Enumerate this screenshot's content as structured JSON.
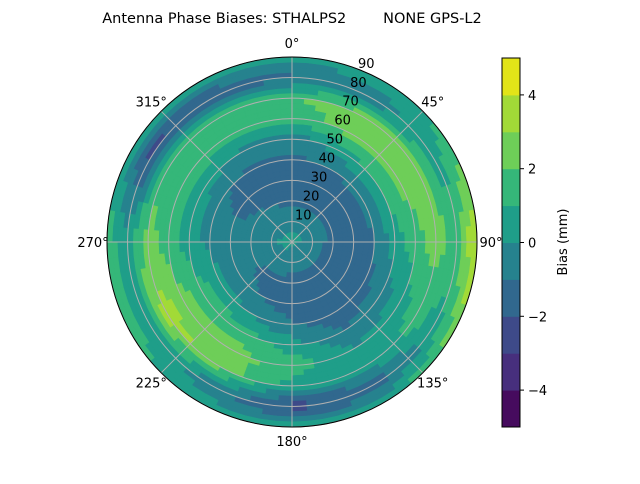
{
  "chart_data": {
    "type": "heatmap",
    "subtype": "polar-contourf",
    "title": "Antenna Phase Biases: STHALPS2        NONE GPS-L2",
    "theta_direction": "clockwise",
    "theta_zero": "north",
    "theta_tick_labels": [
      "0°",
      "45°",
      "90°",
      "135°",
      "180°",
      "225°",
      "270°",
      "315°"
    ],
    "r_tick_labels": [
      "10",
      "20",
      "30",
      "40",
      "50",
      "60",
      "70",
      "80",
      "90"
    ],
    "r_range": [
      0,
      90
    ],
    "grid": true,
    "azimuths_deg": [
      0,
      30,
      60,
      90,
      120,
      150,
      180,
      210,
      240,
      270,
      300,
      330
    ],
    "zeniths_deg": [
      0,
      10,
      20,
      30,
      40,
      50,
      60,
      70,
      80,
      90
    ],
    "values_mm": [
      [
        0.3,
        -0.5,
        -1.2,
        -1.5,
        -1.2,
        -0.5,
        1.2,
        2.0,
        -1.2,
        0.5
      ],
      [
        0.3,
        -0.5,
        -1.2,
        -1.5,
        -1.0,
        0.5,
        2.5,
        2.5,
        -0.5,
        0.5
      ],
      [
        0.3,
        -0.5,
        -1.3,
        -1.5,
        -0.8,
        1.2,
        2.5,
        2.5,
        0.5,
        1.5
      ],
      [
        0.3,
        -0.5,
        -1.3,
        -1.6,
        -1.0,
        0.5,
        1.5,
        2.5,
        1.5,
        4.5
      ],
      [
        0.3,
        -0.6,
        -1.4,
        -1.6,
        -1.3,
        -0.5,
        0.5,
        1.5,
        0.5,
        2.5
      ],
      [
        0.3,
        -0.6,
        -1.4,
        -1.7,
        -1.5,
        -1.0,
        0.0,
        0.5,
        -1.5,
        0.5
      ],
      [
        0.3,
        -0.6,
        -1.3,
        -1.5,
        -1.0,
        0.5,
        1.5,
        0.5,
        -2.5,
        0.5
      ],
      [
        0.3,
        -0.5,
        -1.2,
        -1.0,
        0.0,
        1.5,
        2.5,
        2.5,
        -0.5,
        0.5
      ],
      [
        0.3,
        -0.4,
        -1.0,
        -0.8,
        0.5,
        1.5,
        2.5,
        3.5,
        0.5,
        1.5
      ],
      [
        0.5,
        -0.2,
        -0.6,
        -0.5,
        -0.3,
        0.5,
        1.5,
        2.5,
        0.5,
        1.5
      ],
      [
        0.3,
        -0.3,
        -0.8,
        -1.2,
        -0.8,
        0.5,
        1.5,
        1.5,
        -2.5,
        0.5
      ],
      [
        0.3,
        -0.4,
        -1.0,
        -1.5,
        -1.2,
        -0.2,
        1.5,
        1.5,
        -2.0,
        0.5
      ]
    ],
    "levels": [
      -5,
      -4,
      -3,
      -2,
      -1,
      0,
      1,
      2,
      3,
      4,
      5
    ],
    "colormap": "viridis",
    "level_colors": [
      "#460b5e",
      "#472f7d",
      "#3e4a89",
      "#31688e",
      "#26828e",
      "#1f9e89",
      "#35b779",
      "#6ece58",
      "#a2da37",
      "#e2e418"
    ],
    "colorbar": {
      "label": "Bias (mm)",
      "tick_values": [
        -4,
        -2,
        0,
        2,
        4
      ],
      "tick_labels": [
        "−4",
        "−2",
        "0",
        "2",
        "4"
      ],
      "range": [
        -5,
        5
      ]
    }
  }
}
